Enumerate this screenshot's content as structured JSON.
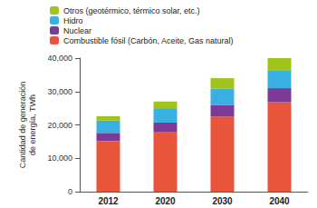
{
  "chart_data": {
    "type": "bar",
    "stacked": true,
    "y_label": "Cantidad de generación\nde energía, TWh",
    "categories": [
      "2012",
      "2020",
      "2030",
      "2040"
    ],
    "series": [
      {
        "name": "Combustible fósil (Carbón, Aceite, Gas natural)",
        "color": "#e8553a",
        "values": [
          15200,
          17800,
          22500,
          26800
        ]
      },
      {
        "name": "Nuclear",
        "color": "#7a3a96",
        "values": [
          2400,
          2900,
          3500,
          4200
        ]
      },
      {
        "name": "Hidro",
        "color": "#3ab0e2",
        "values": [
          3700,
          4300,
          4800,
          5400
        ]
      },
      {
        "name": "Otros (geotérmico, térmico solar, etc.)",
        "color": "#a0c41a",
        "values": [
          1300,
          2000,
          3200,
          3600
        ]
      }
    ],
    "ylim": [
      0,
      40000
    ],
    "yticks": [
      0,
      {
        "value": 10000,
        "label": "10,000"
      },
      {
        "value": 20000,
        "label": "20,000"
      },
      {
        "value": 30000,
        "label": "30,000"
      },
      {
        "value": 40000,
        "label": "40,000"
      }
    ],
    "grid": false,
    "legend": "top-left"
  }
}
